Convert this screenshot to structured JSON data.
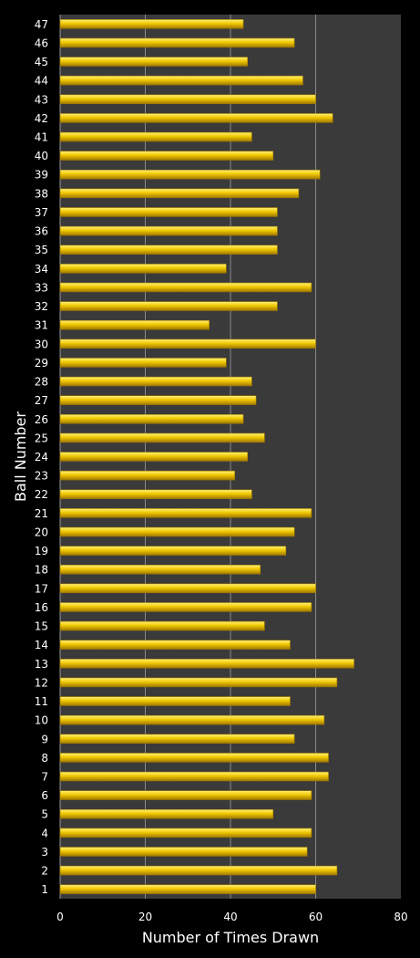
{
  "chart_data": {
    "type": "bar",
    "orientation": "horizontal",
    "xlabel": "Number of Times Drawn",
    "ylabel": "Ball Number",
    "xlim": [
      0,
      80
    ],
    "xticks": [
      "0",
      "20",
      "40",
      "60",
      "80"
    ],
    "grid": "vertical gridlines at 20, 40, 60",
    "legend": "none",
    "colors": {
      "background": "#000000",
      "plot_area": "#3a3a3a",
      "bar": "#f0c800",
      "bar_highlight": "#fff27a",
      "bar_edge": "#a07800",
      "gridline": "#8a8a8a",
      "text": "#ffffff"
    },
    "categories": [
      "1",
      "2",
      "3",
      "4",
      "5",
      "6",
      "7",
      "8",
      "9",
      "10",
      "11",
      "12",
      "13",
      "14",
      "15",
      "16",
      "17",
      "18",
      "19",
      "20",
      "21",
      "22",
      "23",
      "24",
      "25",
      "26",
      "27",
      "28",
      "29",
      "30",
      "31",
      "32",
      "33",
      "34",
      "35",
      "36",
      "37",
      "38",
      "39",
      "40",
      "41",
      "42",
      "43",
      "44",
      "45",
      "46",
      "47"
    ],
    "values": [
      60,
      65,
      58,
      59,
      50,
      59,
      63,
      63,
      55,
      62,
      54,
      65,
      69,
      54,
      48,
      59,
      60,
      47,
      53,
      55,
      59,
      45,
      41,
      44,
      48,
      43,
      46,
      45,
      39,
      60,
      35,
      51,
      59,
      39,
      51,
      51,
      51,
      56,
      61,
      50,
      45,
      64,
      60,
      57,
      44,
      55,
      43
    ]
  }
}
